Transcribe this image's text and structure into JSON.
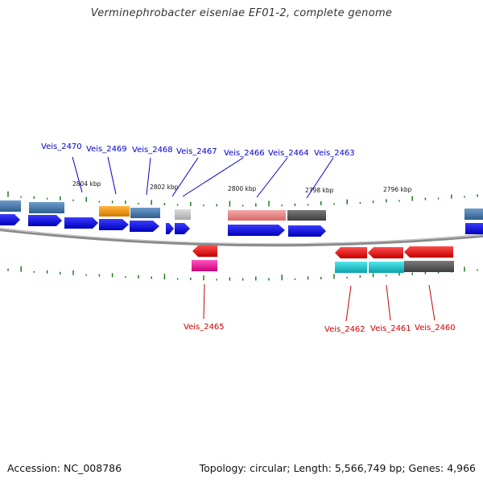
{
  "title": "Verminephrobacter eiseniae EF01-2, complete genome",
  "footer": {
    "accession": "Accession: NC_008786",
    "stats": "Topology: circular; Length: 5,566,749 bp; Genes: 4,966"
  },
  "ticks": [
    "2804 kbp",
    "2802 kbp",
    "2800 kbp",
    "2798 kbp",
    "2796 kbp"
  ],
  "gene_labels": [
    {
      "id": "g2470",
      "text": "Veis_2470",
      "strand": "plus"
    },
    {
      "id": "g2469",
      "text": "Veis_2469",
      "strand": "plus"
    },
    {
      "id": "g2468",
      "text": "Veis_2468",
      "strand": "plus"
    },
    {
      "id": "g2467",
      "text": "Veis_2467",
      "strand": "plus"
    },
    {
      "id": "g2466",
      "text": "Veis_2466",
      "strand": "plus"
    },
    {
      "id": "g2464",
      "text": "Veis_2464",
      "strand": "plus"
    },
    {
      "id": "g2463",
      "text": "Veis_2463",
      "strand": "plus"
    },
    {
      "id": "g2465",
      "text": "Veis_2465",
      "strand": "minus"
    },
    {
      "id": "g2462",
      "text": "Veis_2462",
      "strand": "minus"
    },
    {
      "id": "g2461",
      "text": "Veis_2461",
      "strand": "minus"
    },
    {
      "id": "g2460",
      "text": "Veis_2460",
      "strand": "minus"
    }
  ],
  "colors": {
    "plus_strand": "#0a0ae6",
    "minus_strand": "#ee1111",
    "plus_label": "#0000cc",
    "minus_label": "#cc0000",
    "backbone": "#888888",
    "gc_tick": "#1f7a1f",
    "cog_blue": "#3f78a8",
    "cog_orange": "#f0900a",
    "cog_gray": "#bdbdbd",
    "cog_pink": "#ec8c8c",
    "cog_dark": "#5a5a5a",
    "cog_magenta": "#ee1199",
    "cog_cyan": "#11c4cc"
  }
}
